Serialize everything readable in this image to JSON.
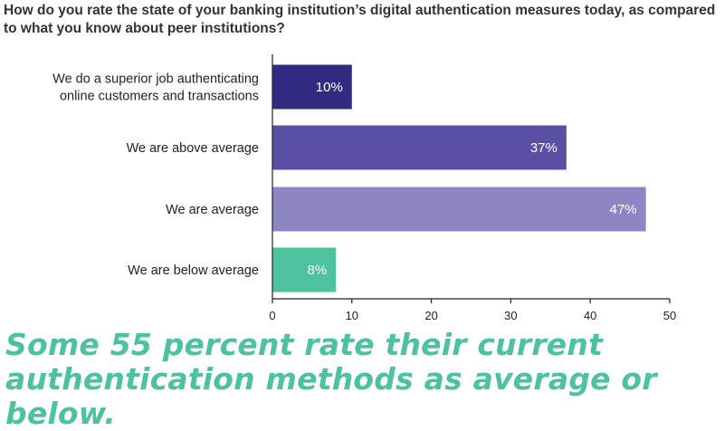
{
  "question": "How do you rate the state of your banking institution’s digital authentication measures today, as compared to what you know about peer institutions?",
  "takeaway": "Some 55 percent rate their current authentication methods as average or below.",
  "chart_data": {
    "type": "bar",
    "orientation": "horizontal",
    "categories": [
      [
        "We do a superior job authenticating",
        "online customers and transactions"
      ],
      [
        "We are above average"
      ],
      [
        "We are average"
      ],
      [
        "We are below average"
      ]
    ],
    "values": [
      10,
      37,
      47,
      8
    ],
    "value_labels": [
      "10%",
      "37%",
      "47%",
      "8%"
    ],
    "colors": [
      "#302b80",
      "#5a50a3",
      "#8d86c4",
      "#4cc2a1"
    ],
    "xlim": [
      0,
      50
    ],
    "xticks": [
      "0",
      "10",
      "20",
      "30",
      "40",
      "50"
    ],
    "grid": false,
    "legend": "none"
  }
}
